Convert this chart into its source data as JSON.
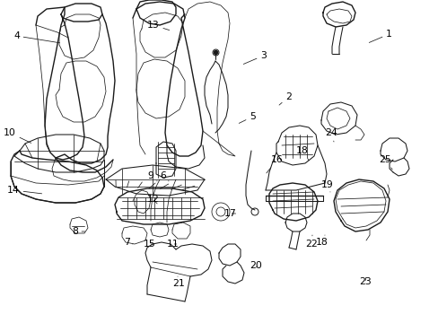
{
  "bg_color": "#ffffff",
  "line_color": "#1a1a1a",
  "label_color": "#000000",
  "label_fontsize": 7.8,
  "figsize": [
    4.89,
    3.6
  ],
  "dpi": 100,
  "labels": [
    [
      "1",
      430,
      38,
      410,
      48,
      "left"
    ],
    [
      "2",
      318,
      108,
      310,
      118,
      "left"
    ],
    [
      "3",
      290,
      62,
      270,
      72,
      "left"
    ],
    [
      "4",
      22,
      40,
      68,
      48,
      "right"
    ],
    [
      "5",
      278,
      130,
      265,
      138,
      "left"
    ],
    [
      "6",
      178,
      196,
      188,
      202,
      "left"
    ],
    [
      "7",
      138,
      270,
      148,
      272,
      "left"
    ],
    [
      "8",
      80,
      258,
      96,
      258,
      "left"
    ],
    [
      "9",
      164,
      196,
      175,
      202,
      "left"
    ],
    [
      "10",
      18,
      148,
      36,
      160,
      "right"
    ],
    [
      "11",
      186,
      272,
      198,
      272,
      "left"
    ],
    [
      "12",
      164,
      222,
      176,
      228,
      "left"
    ],
    [
      "13",
      164,
      28,
      190,
      34,
      "left"
    ],
    [
      "14",
      22,
      212,
      48,
      216,
      "right"
    ],
    [
      "15",
      160,
      272,
      172,
      272,
      "left"
    ],
    [
      "16",
      302,
      178,
      296,
      194,
      "left"
    ],
    [
      "17",
      250,
      238,
      264,
      238,
      "left"
    ],
    [
      "18",
      330,
      168,
      345,
      180,
      "left"
    ],
    [
      "19",
      358,
      206,
      368,
      214,
      "left"
    ],
    [
      "20",
      278,
      296,
      286,
      298,
      "left"
    ],
    [
      "21",
      192,
      316,
      198,
      308,
      "left"
    ],
    [
      "22",
      340,
      272,
      348,
      262,
      "left"
    ],
    [
      "23",
      400,
      314,
      408,
      308,
      "left"
    ],
    [
      "24",
      362,
      148,
      372,
      158,
      "left"
    ],
    [
      "25",
      422,
      178,
      438,
      190,
      "left"
    ],
    [
      "18",
      352,
      270,
      362,
      262,
      "left"
    ]
  ]
}
